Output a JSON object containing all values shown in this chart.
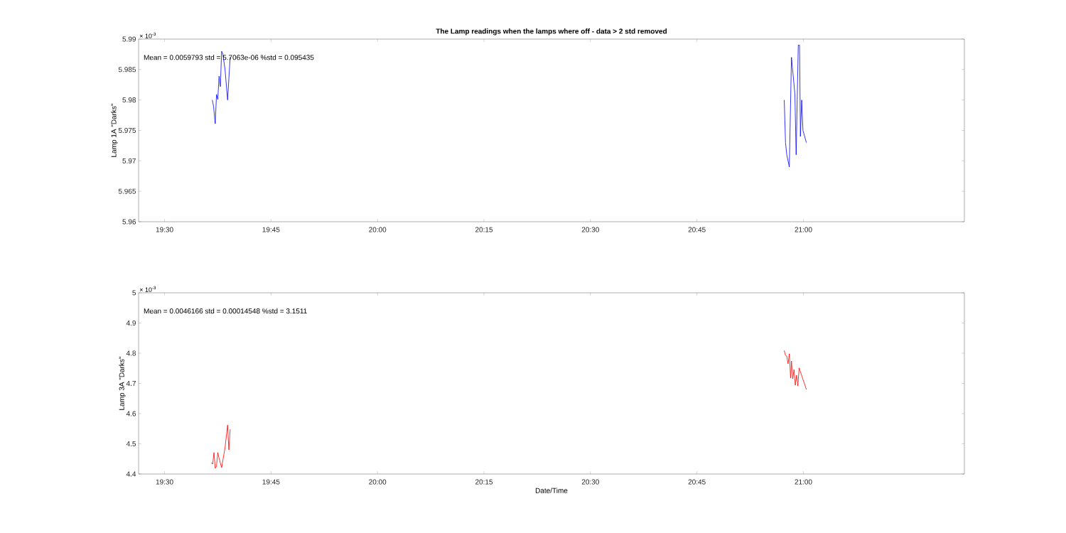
{
  "chart_data": [
    {
      "type": "line",
      "title": "The Lamp readings when the lamps where off - data > 2 std removed",
      "ylabel": "Lamp 1A \"Darks\"",
      "annotations": [
        "Mean = 0.0059793  std = 5.7063e-06  %std = 0.095435",
        "× 10$^{-3}$"
      ],
      "xlim": [
        19.439,
        21.378
      ],
      "ylim": [
        5.96,
        5.99
      ],
      "xticks": [
        {
          "value": 19.5,
          "label": "19:30"
        },
        {
          "value": 19.75,
          "label": "19:45"
        },
        {
          "value": 20.0,
          "label": "20:00"
        },
        {
          "value": 20.25,
          "label": "20:15"
        },
        {
          "value": 20.5,
          "label": "20:30"
        },
        {
          "value": 20.75,
          "label": "20:45"
        },
        {
          "value": 21.0,
          "label": "21:00"
        }
      ],
      "yticks": [
        5.96,
        5.965,
        5.97,
        5.975,
        5.98,
        5.985,
        5.99
      ],
      "series": [
        {
          "color": "#0000ff",
          "x": [
            19.612,
            19.615,
            19.619,
            19.622,
            19.625,
            19.628,
            19.631,
            19.634,
            19.637,
            19.642,
            19.648,
            19.654,
            19.8,
            20.955,
            20.958,
            20.961,
            20.967,
            20.972,
            20.98,
            20.983,
            20.988,
            20.991,
            20.993,
            20.996,
            20.999,
            21.007
          ],
          "values": [
            5.98,
            5.979,
            5.9761,
            5.9809,
            5.9801,
            5.9839,
            5.9822,
            5.988,
            5.9875,
            5.985,
            5.98,
            5.987,
            null,
            5.98,
            5.973,
            5.971,
            5.969,
            5.987,
            5.981,
            5.971,
            5.989,
            5.989,
            5.974,
            5.98,
            5.975,
            5.973
          ]
        }
      ]
    },
    {
      "type": "line",
      "xlabel": "Date/Time",
      "ylabel": "Lamp 3A \"Darks\"",
      "annotations": [
        "Mean = 0.0046166  std = 0.00014548  %std = 3.1511",
        "× 10$^{-3}$"
      ],
      "xlim": [
        19.439,
        21.378
      ],
      "ylim": [
        4.4,
        5.0
      ],
      "xticks": [
        {
          "value": 19.5,
          "label": "19:30"
        },
        {
          "value": 19.75,
          "label": "19:45"
        },
        {
          "value": 20.0,
          "label": "20:00"
        },
        {
          "value": 20.25,
          "label": "20:15"
        },
        {
          "value": 20.5,
          "label": "20:30"
        },
        {
          "value": 20.75,
          "label": "20:45"
        },
        {
          "value": 21.0,
          "label": "21:00"
        }
      ],
      "yticks": [
        4.4,
        4.5,
        4.6,
        4.7,
        4.8,
        4.9,
        5
      ],
      "series": [
        {
          "color": "#ff0000",
          "x": [
            19.61,
            19.613,
            19.616,
            19.619,
            19.622,
            19.625,
            19.628,
            19.634,
            19.642,
            19.648,
            19.651,
            19.654,
            19.8,
            20.955,
            20.958,
            20.961,
            20.964,
            20.967,
            20.97,
            20.972,
            20.975,
            20.978,
            20.981,
            20.984,
            20.987,
            20.99,
            21.007
          ],
          "values": [
            4.438,
            4.433,
            4.471,
            4.419,
            4.426,
            4.471,
            4.452,
            4.421,
            4.487,
            4.562,
            4.48,
            4.548,
            null,
            4.809,
            4.793,
            4.79,
            4.765,
            4.798,
            4.718,
            4.774,
            4.715,
            4.746,
            4.694,
            4.727,
            4.692,
            4.751,
            4.68
          ]
        }
      ]
    }
  ]
}
